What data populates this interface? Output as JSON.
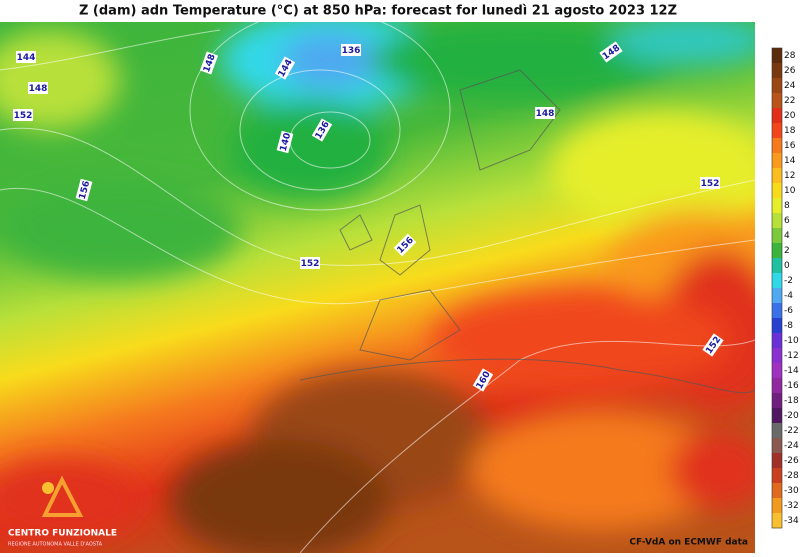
{
  "header": {
    "title": "Z (dam) adn Temperature (°C) at 850 hPa: forecast for lunedì 21 agosto 2023  12Z"
  },
  "colorbar": {
    "levels": [
      28,
      26,
      24,
      22,
      20,
      18,
      16,
      14,
      12,
      10,
      8,
      6,
      4,
      2,
      0,
      -2,
      -4,
      -6,
      -8,
      -10,
      -12,
      -14,
      -16,
      -18,
      -20,
      -22,
      -24,
      -26,
      -28,
      -30,
      -32,
      -34
    ],
    "colors": [
      "#5c2a0c",
      "#7a3810",
      "#9a4714",
      "#b8531a",
      "#e0301a",
      "#f0461a",
      "#f57a1e",
      "#f99a1e",
      "#fbbd20",
      "#f8dc1c",
      "#e6ee2a",
      "#b8e03a",
      "#7cca3c",
      "#3cb43c",
      "#20c0a0",
      "#30d8e8",
      "#50a8f0",
      "#3a70e8",
      "#2840d0",
      "#6a30d8",
      "#8a30d0",
      "#a030c0",
      "#9028a0",
      "#701e80",
      "#501860",
      "#6a6a6a",
      "#8a5a50",
      "#a0302a",
      "#c84020",
      "#e06a20",
      "#f09a20",
      "#f8c030"
    ]
  },
  "contour_labels": [
    144,
    148,
    152,
    148,
    144,
    136,
    136,
    140,
    156,
    152,
    156,
    148,
    148,
    152,
    152,
    160
  ],
  "logo": {
    "name": "CENTRO FUNZIONALE",
    "subtitle": "REGIONE AUTONOMA VALLE D'AOSTA"
  },
  "credit": "CF-VdA on ECMWF data"
}
